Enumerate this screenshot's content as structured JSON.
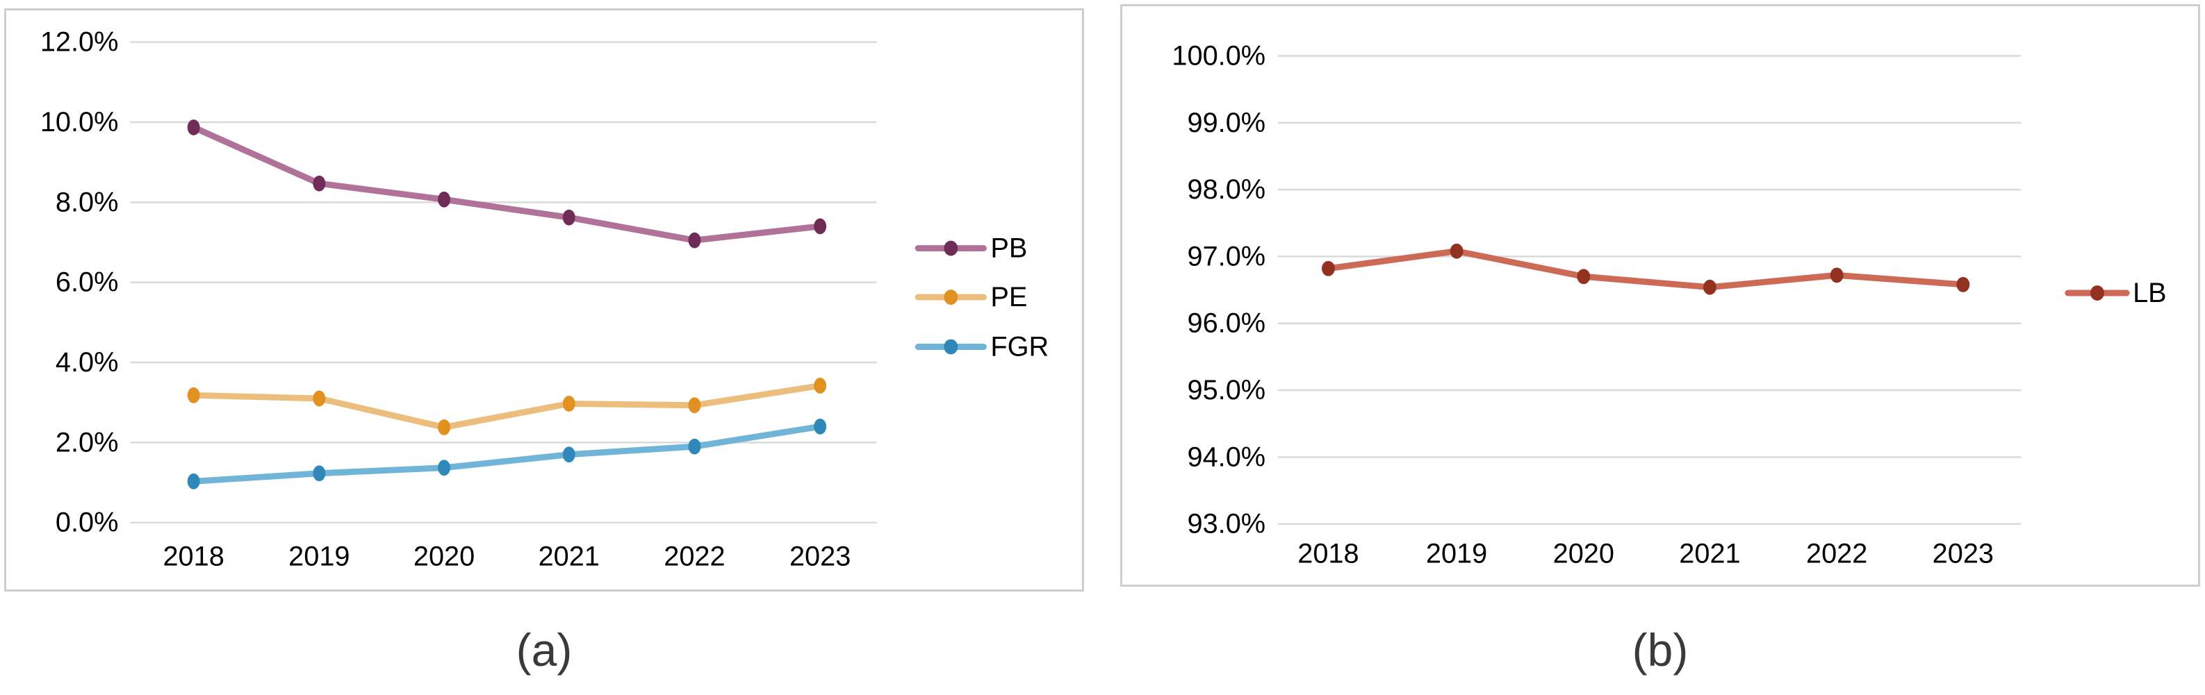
{
  "figure": {
    "background": "#ffffff",
    "panel_border_color": "#cfcdcd",
    "gridline_color": "#d9d9d9",
    "axis_text_color": "#000000",
    "caption_color": "#3a3a3a"
  },
  "captions": {
    "a": "(a)",
    "b": "(b)"
  },
  "chart_data": [
    {
      "id": "a",
      "type": "line",
      "caption": "(a)",
      "categories": [
        "2018",
        "2019",
        "2020",
        "2021",
        "2022",
        "2023"
      ],
      "series": [
        {
          "name": "PB",
          "values": [
            9.87,
            8.47,
            8.07,
            7.62,
            7.05,
            7.4
          ],
          "line_color": "#b07299",
          "marker_color": "#6f2c56"
        },
        {
          "name": "PE",
          "values": [
            3.18,
            3.1,
            2.38,
            2.97,
            2.93,
            3.42
          ],
          "line_color": "#ecbe7d",
          "marker_color": "#e0911f"
        },
        {
          "name": "FGR",
          "values": [
            1.03,
            1.23,
            1.37,
            1.7,
            1.9,
            2.4
          ],
          "line_color": "#70b5d8",
          "marker_color": "#2f87ba"
        }
      ],
      "ylim": [
        0,
        12
      ],
      "yticks": [
        0,
        2,
        4,
        6,
        8,
        10,
        12
      ],
      "ytick_labels": [
        "0.0%",
        "2.0%",
        "4.0%",
        "6.0%",
        "8.0%",
        "10.0%",
        "12.0%"
      ],
      "xlabel": "",
      "ylabel": "",
      "grid": true,
      "legend_position": "right"
    },
    {
      "id": "b",
      "type": "line",
      "caption": "(b)",
      "categories": [
        "2018",
        "2019",
        "2020",
        "2021",
        "2022",
        "2023"
      ],
      "series": [
        {
          "name": "LB",
          "values": [
            96.82,
            97.08,
            96.7,
            96.54,
            96.72,
            96.58
          ],
          "line_color": "#cd6a55",
          "marker_color": "#943222"
        }
      ],
      "ylim": [
        93,
        100
      ],
      "yticks": [
        93,
        94,
        95,
        96,
        97,
        98,
        99,
        100
      ],
      "ytick_labels": [
        "93.0%",
        "94.0%",
        "95.0%",
        "96.0%",
        "97.0%",
        "98.0%",
        "99.0%",
        "100.0%"
      ],
      "xlabel": "",
      "ylabel": "",
      "grid": true,
      "legend_position": "right"
    }
  ]
}
